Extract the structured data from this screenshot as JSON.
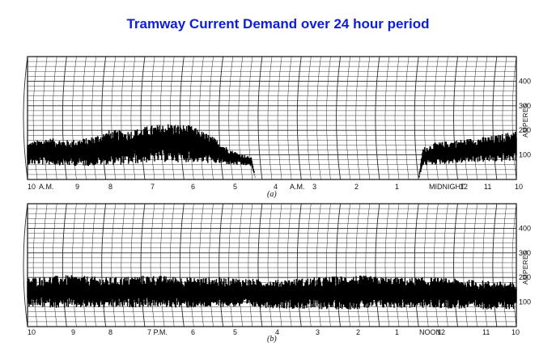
{
  "title": "Tramway Current Demand over 24 hour period",
  "colors": {
    "title": "#0d1ed6",
    "ink": "#111111",
    "grid": "#2a2a2a"
  },
  "chart_data": [
    {
      "type": "area",
      "panel_label": "(a)",
      "ylabel": "AMPERES",
      "yticks": [
        "100",
        "200",
        "300",
        "400"
      ],
      "ytick_values": [
        100,
        200,
        300,
        400
      ],
      "ylim": [
        0,
        500
      ],
      "xtick_labels": [
        "10",
        "A.M.",
        "9",
        "8",
        "7",
        "6",
        "5",
        "4",
        "A.M.",
        "3",
        "2",
        "1",
        "MIDNIGHT",
        "12",
        "11",
        "10"
      ],
      "x_direction": "time decreases left to right",
      "series": [
        {
          "hours_before_start": [
            0,
            0.5,
            1,
            1.5,
            2,
            2.5,
            3,
            3.5,
            4,
            4.5,
            5,
            5.5,
            5.6,
            9.6,
            9.7,
            10,
            10.5,
            11,
            11.5,
            12
          ],
          "low": [
            60,
            60,
            55,
            55,
            60,
            60,
            70,
            70,
            70,
            65,
            60,
            55,
            0,
            0,
            55,
            60,
            65,
            70,
            70,
            75
          ],
          "high": [
            150,
            170,
            160,
            170,
            200,
            200,
            220,
            230,
            220,
            180,
            120,
            90,
            0,
            0,
            130,
            150,
            160,
            170,
            180,
            200
          ]
        }
      ]
    },
    {
      "type": "area",
      "panel_label": "(b)",
      "ylabel": "AMPERES",
      "yticks": [
        "100",
        "200",
        "300",
        "400"
      ],
      "ytick_values": [
        100,
        200,
        300,
        400
      ],
      "ylim": [
        0,
        500
      ],
      "xtick_labels": [
        "10",
        "9",
        "8",
        "7 P.M.",
        "6",
        "5",
        "4",
        "3",
        "2",
        "1",
        "NOON",
        "12",
        "11",
        "10"
      ],
      "x_direction": "time decreases left to right",
      "series": [
        {
          "hours_before_start": [
            0,
            1,
            2,
            3,
            4,
            5,
            6,
            7,
            8,
            9,
            10,
            11,
            12
          ],
          "low": [
            80,
            75,
            75,
            80,
            75,
            80,
            75,
            70,
            70,
            75,
            75,
            70,
            70
          ],
          "high": [
            200,
            210,
            200,
            210,
            200,
            200,
            190,
            200,
            210,
            200,
            200,
            190,
            180
          ]
        }
      ]
    }
  ]
}
